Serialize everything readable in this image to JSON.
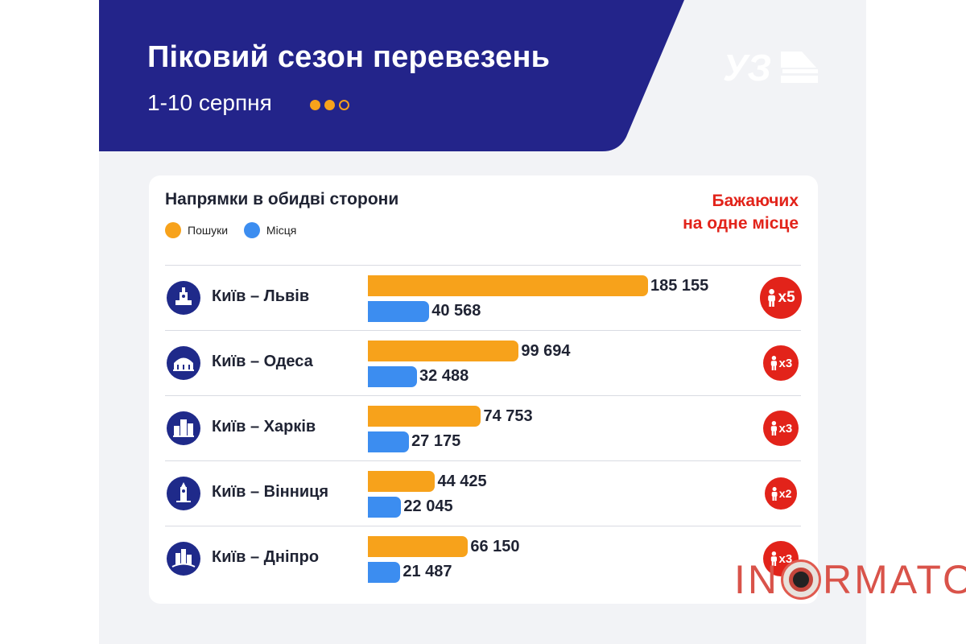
{
  "header": {
    "title": "Піковий сезон перевезень",
    "subtitle": "1-10 серпня",
    "band_color": "#23248a",
    "dot_colors": [
      "#f7a21b",
      "#f7a21b",
      "#ffffff"
    ],
    "logo_text": "УЗ"
  },
  "card": {
    "title": "Напрямки в обидві сторони",
    "ratio_title_line1": "Бажаючих",
    "ratio_title_line2": "на одне місце"
  },
  "chart_data": {
    "type": "bar",
    "orientation": "horizontal",
    "categories": [
      "Київ – Львів",
      "Київ – Одеса",
      "Київ – Харків",
      "Київ – Вінниця",
      "Київ – Дніпро"
    ],
    "series": [
      {
        "name": "Пошуки",
        "color": "#f7a21b",
        "values": [
          185155,
          99694,
          74753,
          44425,
          66150
        ]
      },
      {
        "name": "Місця",
        "color": "#3c8df0",
        "values": [
          40568,
          32488,
          27175,
          22045,
          21487
        ]
      }
    ],
    "value_labels": {
      "Пошуки": [
        "185 155",
        "99 694",
        "74 753",
        "44 425",
        "66 150"
      ],
      "Місця": [
        "40 568",
        "32 488",
        "27 175",
        "22 045",
        "21 487"
      ]
    },
    "ratios": [
      "x5",
      "x3",
      "x3",
      "x2",
      "x3"
    ],
    "city_icons": [
      "lviv-city-hall-icon",
      "odesa-opera-icon",
      "kharkiv-gosprom-icon",
      "vinnytsia-tower-icon",
      "dnipro-skyline-icon"
    ],
    "legend": "top-left",
    "grid": false
  },
  "watermark": {
    "text_before": "IN",
    "text_after": "RMATOR",
    "label": "INFORMATOR"
  }
}
